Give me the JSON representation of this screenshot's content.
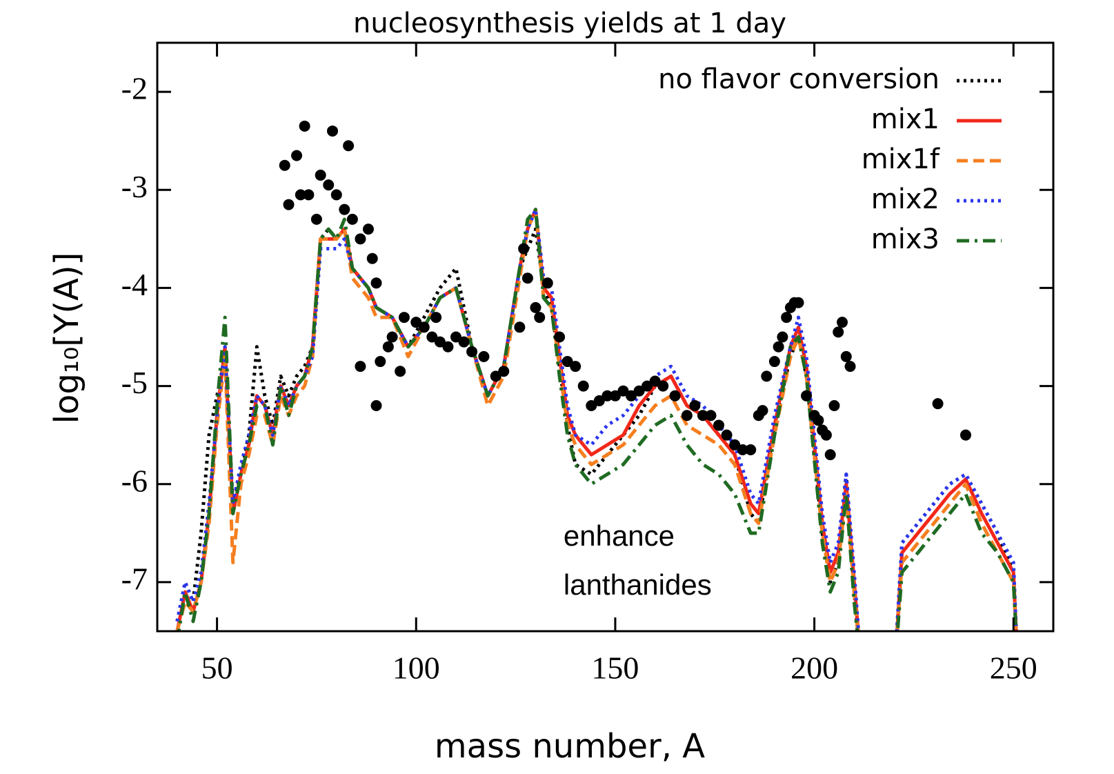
{
  "chart_data": {
    "type": "line",
    "title": "nucleosynthesis yields at 1 day",
    "xlabel": "mass number, A",
    "ylabel": "log₁₀[Y(A)]",
    "annotations": [
      {
        "text": "enhance",
        "x": 137,
        "y": -6.55,
        "color": "#e8251c"
      },
      {
        "text": "lanthanides",
        "x": 137,
        "y": -7.05,
        "color": "#e8251c"
      }
    ],
    "legend": "upper right",
    "xlim": [
      35,
      260
    ],
    "ylim": [
      -7.5,
      -1.5
    ],
    "xticks": [
      50,
      100,
      150,
      200,
      250
    ],
    "yticks": [
      -2,
      -3,
      -4,
      -5,
      -6,
      -7
    ],
    "x": [
      40,
      42,
      44,
      46,
      48,
      50,
      52,
      54,
      56,
      58,
      60,
      62,
      64,
      66,
      68,
      70,
      72,
      74,
      76,
      78,
      80,
      82,
      84,
      86,
      88,
      90,
      94,
      98,
      102,
      106,
      110,
      114,
      118,
      122,
      126,
      128,
      130,
      132,
      134,
      136,
      138,
      140,
      144,
      148,
      152,
      156,
      160,
      164,
      168,
      172,
      176,
      180,
      184,
      186,
      190,
      194,
      196,
      198,
      202,
      204,
      206,
      208,
      210,
      212,
      214,
      220,
      222,
      226,
      230,
      234,
      238,
      242,
      246,
      250,
      251
    ],
    "series": [
      {
        "name": "no flavor conversion",
        "color": "#000000",
        "style": "dotted",
        "values": [
          -7.4,
          -7.0,
          -7.2,
          -6.5,
          -5.5,
          -5.1,
          -4.7,
          -6.2,
          -5.9,
          -5.5,
          -4.6,
          -5.1,
          -5.4,
          -4.9,
          -5.1,
          -4.9,
          -4.8,
          -4.6,
          -3.5,
          -3.4,
          -3.5,
          -3.4,
          -3.8,
          -3.9,
          -4.0,
          -4.2,
          -4.3,
          -4.6,
          -4.3,
          -4.0,
          -3.8,
          -4.6,
          -5.1,
          -4.8,
          -3.8,
          -3.6,
          -3.4,
          -4.0,
          -4.2,
          -4.8,
          -5.4,
          -5.8,
          -5.9,
          -5.7,
          -5.5,
          -5.3,
          -5.0,
          -4.9,
          -5.2,
          -5.3,
          -5.5,
          -5.7,
          -6.3,
          -6.4,
          -5.4,
          -4.7,
          -4.5,
          -4.9,
          -6.5,
          -7.0,
          -6.8,
          -5.9,
          -7.1,
          -8.0,
          null,
          -8.0,
          -6.6,
          -6.4,
          -6.2,
          -6.0,
          -5.9,
          -6.2,
          -6.5,
          -6.9,
          -7.8
        ]
      },
      {
        "name": "mix1",
        "color": "#f2281a",
        "style": "solid",
        "values": [
          -7.5,
          -7.1,
          -7.3,
          -7.0,
          -6.3,
          -5.3,
          -4.6,
          -6.3,
          -5.9,
          -5.6,
          -5.1,
          -5.2,
          -5.5,
          -5.0,
          -5.2,
          -5.0,
          -4.9,
          -4.6,
          -3.5,
          -3.5,
          -3.5,
          -3.4,
          -3.8,
          -3.9,
          -4.0,
          -4.2,
          -4.3,
          -4.6,
          -4.4,
          -4.1,
          -4.0,
          -4.6,
          -5.1,
          -4.8,
          -3.8,
          -3.4,
          -3.2,
          -4.0,
          -4.1,
          -4.7,
          -5.3,
          -5.5,
          -5.7,
          -5.6,
          -5.5,
          -5.2,
          -5.0,
          -4.9,
          -5.2,
          -5.3,
          -5.5,
          -5.7,
          -6.2,
          -6.3,
          -5.4,
          -4.6,
          -4.4,
          -4.8,
          -6.4,
          -6.9,
          -6.7,
          -6.0,
          -7.0,
          -8.0,
          null,
          -8.0,
          -6.7,
          -6.5,
          -6.3,
          -6.1,
          -5.95,
          -6.3,
          -6.6,
          -6.9,
          -7.8
        ]
      },
      {
        "name": "mix1f",
        "color": "#f57f20",
        "style": "dashed",
        "values": [
          -7.5,
          -7.2,
          -7.3,
          -7.0,
          -6.4,
          -5.4,
          -4.7,
          -6.8,
          -6.0,
          -5.7,
          -5.3,
          -5.3,
          -5.6,
          -5.1,
          -5.3,
          -5.1,
          -5.0,
          -4.7,
          -3.5,
          -3.5,
          -3.5,
          -3.4,
          -3.9,
          -4.0,
          -4.1,
          -4.3,
          -4.3,
          -4.7,
          -4.4,
          -4.1,
          -4.0,
          -4.6,
          -5.2,
          -4.9,
          -3.9,
          -3.4,
          -3.2,
          -4.1,
          -4.2,
          -4.8,
          -5.4,
          -5.6,
          -5.8,
          -5.7,
          -5.6,
          -5.4,
          -5.2,
          -5.1,
          -5.4,
          -5.5,
          -5.6,
          -5.8,
          -6.3,
          -6.4,
          -5.5,
          -4.7,
          -4.5,
          -4.9,
          -6.5,
          -7.0,
          -6.8,
          -6.1,
          -7.1,
          -8.0,
          null,
          -8.0,
          -6.8,
          -6.6,
          -6.4,
          -6.2,
          -6.0,
          -6.4,
          -6.7,
          -7.0,
          -7.8
        ]
      },
      {
        "name": "mix2",
        "color": "#2b35f0",
        "style": "dotted",
        "values": [
          -7.4,
          -7.0,
          -7.2,
          -6.9,
          -6.2,
          -5.3,
          -4.6,
          -6.2,
          -5.8,
          -5.5,
          -5.1,
          -5.2,
          -5.5,
          -5.0,
          -5.2,
          -5.0,
          -4.9,
          -4.7,
          -3.6,
          -3.6,
          -3.6,
          -3.5,
          -3.8,
          -3.9,
          -4.0,
          -4.2,
          -4.3,
          -4.6,
          -4.4,
          -4.1,
          -4.0,
          -4.6,
          -5.1,
          -4.8,
          -3.8,
          -3.4,
          -3.2,
          -3.9,
          -4.0,
          -4.6,
          -5.2,
          -5.5,
          -5.6,
          -5.4,
          -5.3,
          -5.1,
          -4.9,
          -4.8,
          -5.1,
          -5.2,
          -5.4,
          -5.6,
          -6.1,
          -6.2,
          -5.3,
          -4.6,
          -4.3,
          -4.7,
          -6.3,
          -6.8,
          -6.6,
          -5.9,
          -6.9,
          -8.0,
          null,
          -8.0,
          -6.6,
          -6.4,
          -6.2,
          -6.0,
          -5.9,
          -6.2,
          -6.5,
          -6.8,
          -7.8
        ]
      },
      {
        "name": "mix3",
        "color": "#1f6b22",
        "style": "dashdot",
        "values": [
          -7.6,
          -7.1,
          -7.4,
          -7.0,
          -6.3,
          -5.2,
          -4.3,
          -6.3,
          -5.9,
          -5.6,
          -5.2,
          -5.2,
          -5.6,
          -5.0,
          -5.3,
          -5.0,
          -4.9,
          -4.6,
          -3.5,
          -3.4,
          -3.5,
          -3.3,
          -3.8,
          -3.9,
          -4.0,
          -4.2,
          -4.3,
          -4.6,
          -4.4,
          -4.1,
          -4.0,
          -4.6,
          -5.1,
          -4.8,
          -3.8,
          -3.3,
          -3.2,
          -4.1,
          -4.2,
          -4.9,
          -5.5,
          -5.8,
          -6.0,
          -5.9,
          -5.8,
          -5.6,
          -5.4,
          -5.3,
          -5.6,
          -5.8,
          -5.9,
          -6.1,
          -6.5,
          -6.5,
          -5.5,
          -4.6,
          -4.5,
          -4.9,
          -6.6,
          -7.1,
          -6.9,
          -6.1,
          -7.2,
          -8.0,
          null,
          -8.0,
          -6.9,
          -6.7,
          -6.5,
          -6.3,
          -6.1,
          -6.5,
          -6.7,
          -7.0,
          -7.8
        ]
      },
      {
        "color": "#000000",
        "style": "markers",
        "x": [
          67,
          68,
          70,
          71,
          72,
          73,
          75,
          76,
          78,
          79,
          80,
          82,
          83,
          84,
          86,
          88,
          89,
          90,
          86,
          90,
          91,
          93,
          94,
          96,
          97,
          100,
          102,
          104,
          105,
          106,
          108,
          110,
          112,
          114,
          117,
          120,
          122,
          126,
          127,
          128,
          130,
          131,
          133,
          136,
          138,
          140,
          142,
          144,
          146,
          148,
          150,
          152,
          154,
          156,
          158,
          160,
          162,
          165,
          168,
          170,
          172,
          174,
          176,
          178,
          180,
          182,
          184,
          186,
          187,
          188,
          190,
          191,
          192,
          193,
          194,
          195,
          196,
          198,
          200,
          201,
          202,
          203,
          204,
          205,
          206,
          207,
          208,
          209,
          231,
          238
        ],
        "values": [
          -2.75,
          -3.15,
          -2.65,
          -3.05,
          -2.35,
          -3.05,
          -3.3,
          -2.85,
          -2.95,
          -2.4,
          -3.05,
          -3.2,
          -2.55,
          -3.3,
          -3.5,
          -3.4,
          -3.7,
          -3.95,
          -4.8,
          -5.2,
          -4.75,
          -4.6,
          -4.5,
          -4.85,
          -4.3,
          -4.35,
          -4.4,
          -4.5,
          -4.3,
          -4.55,
          -4.6,
          -4.5,
          -4.55,
          -4.65,
          -4.7,
          -4.9,
          -4.85,
          -4.4,
          -3.6,
          -3.9,
          -4.2,
          -4.3,
          -3.95,
          -4.5,
          -4.75,
          -4.8,
          -5.0,
          -5.2,
          -5.15,
          -5.1,
          -5.1,
          -5.05,
          -5.1,
          -5.05,
          -5.0,
          -4.95,
          -5.0,
          -5.1,
          -5.3,
          -5.2,
          -5.3,
          -5.3,
          -5.4,
          -5.5,
          -5.6,
          -5.65,
          -5.65,
          -5.3,
          -5.25,
          -4.9,
          -4.75,
          -4.6,
          -4.5,
          -4.3,
          -4.2,
          -4.15,
          -4.15,
          -5.1,
          -5.3,
          -5.35,
          -5.45,
          -5.5,
          -5.7,
          -5.2,
          -4.45,
          -4.35,
          -4.7,
          -4.8,
          -5.18,
          -5.5
        ]
      }
    ]
  }
}
